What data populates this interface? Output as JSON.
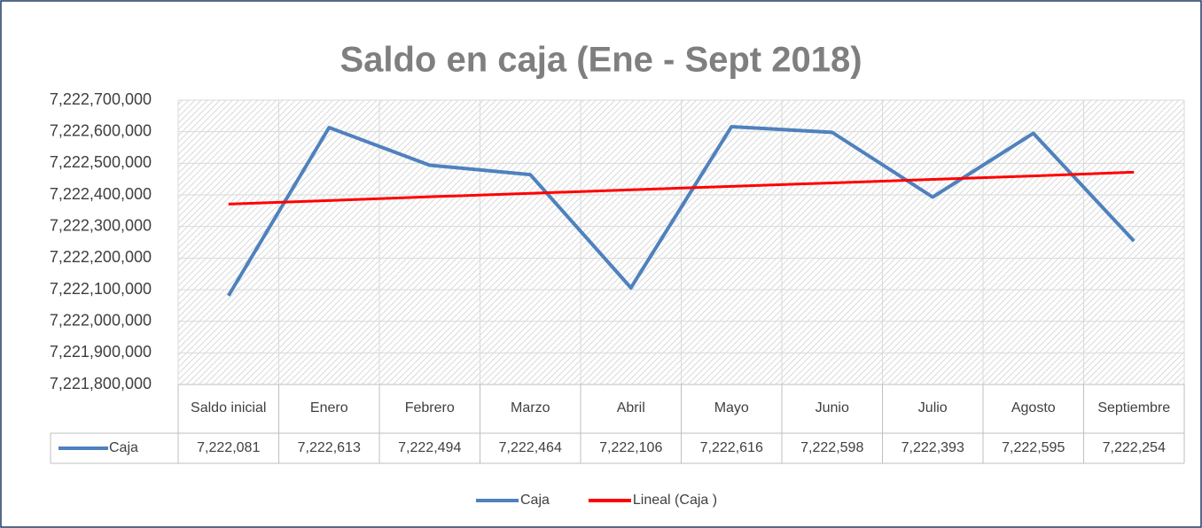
{
  "chart_data": {
    "type": "line",
    "title": "Saldo en caja (Ene - Sept 2018)",
    "categories": [
      "Saldo inicial",
      "Enero",
      "Febrero",
      "Marzo",
      "Abril",
      "Mayo",
      "Junio",
      "Julio",
      "Agosto",
      "Septiembre"
    ],
    "series": [
      {
        "name": "Caja",
        "color": "#4f81bd",
        "values": [
          7222081000,
          7222613000,
          7222494000,
          7222464000,
          7222106000,
          7222616000,
          7222598000,
          7222393000,
          7222595000,
          7222254000
        ],
        "value_labels": [
          "7,222,081",
          "7,222,613",
          "7,222,494",
          "7,222,464",
          "7,222,106",
          "7,222,616",
          "7,222,598",
          "7,222,393",
          "7,222,595",
          "7,222,254"
        ]
      },
      {
        "name": "Lineal (Caja )",
        "color": "#ff0000",
        "values": [
          7222371000,
          7222382000,
          7222394000,
          7222405000,
          7222416000,
          7222427000,
          7222438000,
          7222449000,
          7222460000,
          7222472000
        ]
      }
    ],
    "ylim": [
      7221800000,
      7222700000
    ],
    "yticks": [
      {
        "value": 7221800000,
        "label": "7,221,800,000"
      },
      {
        "value": 7221900000,
        "label": "7,221,900,000"
      },
      {
        "value": 7222000000,
        "label": "7,222,000,000"
      },
      {
        "value": 7222100000,
        "label": "7,222,100,000"
      },
      {
        "value": 7222200000,
        "label": "7,222,200,000"
      },
      {
        "value": 7222300000,
        "label": "7,222,300,000"
      },
      {
        "value": 7222400000,
        "label": "7,222,400,000"
      },
      {
        "value": 7222500000,
        "label": "7,222,500,000"
      },
      {
        "value": 7222600000,
        "label": "7,222,600,000"
      },
      {
        "value": 7222700000,
        "label": "7,222,700,000"
      }
    ],
    "grid": true,
    "legend": "bottom"
  }
}
